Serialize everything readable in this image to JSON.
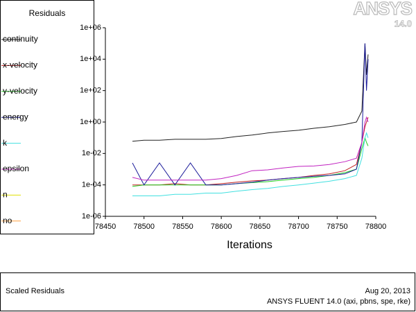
{
  "chart_data": {
    "type": "line",
    "legend_title": "Residuals",
    "xlabel": "Iterations",
    "ylog": true,
    "xlim": [
      78450,
      78800
    ],
    "xticks": [
      78450,
      78500,
      78550,
      78600,
      78650,
      78700,
      78750,
      78800
    ],
    "ylim": [
      1e-06,
      1000000
    ],
    "yticks": [
      {
        "value": 1e-06,
        "label": "1e-06"
      },
      {
        "value": 0.0001,
        "label": "1e-04"
      },
      {
        "value": 0.01,
        "label": "1e-02"
      },
      {
        "value": 1,
        "label": "1e+00"
      },
      {
        "value": 100,
        "label": "1e+02"
      },
      {
        "value": 10000,
        "label": "1e+04"
      },
      {
        "value": 1000000,
        "label": "1e+06"
      }
    ],
    "x": [
      78485,
      78500,
      78520,
      78540,
      78560,
      78580,
      78600,
      78620,
      78640,
      78660,
      78680,
      78700,
      78720,
      78740,
      78760,
      78775,
      78782,
      78786,
      78788,
      78790
    ],
    "series": [
      {
        "name": "continuity",
        "color": "#202020",
        "values": [
          0.06,
          0.07,
          0.07,
          0.08,
          0.08,
          0.08,
          0.09,
          0.12,
          0.15,
          0.2,
          0.25,
          0.3,
          0.4,
          0.5,
          0.7,
          1,
          5,
          100000,
          1000,
          20000
        ]
      },
      {
        "name": "x-velocity",
        "color": "#c02020",
        "values": [
          0.0001,
          0.0001,
          0.0001,
          0.00012,
          0.0001,
          0.0001,
          0.00012,
          0.00015,
          0.00018,
          0.0002,
          0.00025,
          0.0003,
          0.0004,
          0.0005,
          0.0008,
          0.002,
          0.05,
          0.5,
          1,
          2
        ]
      },
      {
        "name": "y-velocity",
        "color": "#20d020",
        "values": [
          8e-05,
          0.0001,
          0.0001,
          0.0001,
          0.0001,
          0.0001,
          0.0001,
          0.00012,
          0.00014,
          0.00016,
          0.0002,
          0.00025,
          0.0003,
          0.0004,
          0.0006,
          0.001,
          0.02,
          0.1,
          0.05,
          0.03
        ]
      },
      {
        "name": "energy",
        "color": "#1a1a9a",
        "values": [
          0.0025,
          0.0001,
          0.0025,
          0.0001,
          0.0025,
          0.0001,
          0.0001,
          0.00012,
          0.00015,
          0.0002,
          0.00025,
          0.0003,
          0.00035,
          0.0004,
          0.0005,
          0.001,
          0.05,
          100000,
          100,
          10000
        ]
      },
      {
        "name": "k",
        "color": "#40e0e0",
        "values": [
          2e-05,
          2e-05,
          2e-05,
          2.5e-05,
          2.5e-05,
          3e-05,
          3e-05,
          4e-05,
          5e-05,
          6e-05,
          8e-05,
          0.0001,
          0.00013,
          0.00017,
          0.00025,
          0.0004,
          0.005,
          0.1,
          0.2,
          0.1
        ]
      },
      {
        "name": "epsilon",
        "color": "#c020c0",
        "values": [
          0.0003,
          0.0002,
          0.0002,
          0.0002,
          0.0002,
          0.0002,
          0.00025,
          0.0004,
          0.0008,
          0.0009,
          0.0012,
          0.0015,
          0.0016,
          0.002,
          0.003,
          0.005,
          0.05,
          1,
          2,
          1
        ]
      },
      {
        "name": "n",
        "color": "#e0e000",
        "values": [
          null,
          null,
          null,
          null,
          null,
          null,
          null,
          null,
          null,
          null,
          null,
          null,
          null,
          null,
          null,
          null,
          null,
          null,
          null,
          null
        ]
      },
      {
        "name": "no",
        "color": "#ffa040",
        "values": [
          null,
          null,
          null,
          null,
          null,
          null,
          null,
          null,
          null,
          null,
          null,
          null,
          null,
          null,
          null,
          null,
          null,
          null,
          null,
          null
        ]
      }
    ]
  },
  "logo": {
    "brand": "ANSYS",
    "version": "14.0"
  },
  "footer": {
    "caption": "Scaled Residuals",
    "date": "Aug 20, 2013",
    "info": "ANSYS FLUENT 14.0 (axi, pbns, spe, rke)"
  }
}
